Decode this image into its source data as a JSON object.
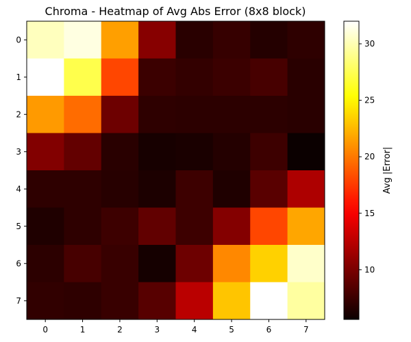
{
  "chart_data": {
    "type": "heatmap",
    "title": "Chroma - Heatmap of Avg Abs Error (8x8 block)",
    "xlabel": "",
    "ylabel": "",
    "x_ticks": [
      "0",
      "1",
      "2",
      "3",
      "4",
      "5",
      "6",
      "7"
    ],
    "y_ticks": [
      "0",
      "1",
      "2",
      "3",
      "4",
      "5",
      "6",
      "7"
    ],
    "colormap": "hot",
    "vmin": 5.6,
    "vmax": 32.0,
    "colorbar": {
      "label": "Avg |Error|",
      "ticks": [
        10,
        15,
        20,
        25,
        30
      ],
      "tick_labels": [
        "10",
        "15",
        "20",
        "25",
        "30"
      ]
    },
    "values": [
      [
        30.3,
        31.2,
        21.5,
        10.5,
        6.8,
        7.3,
        6.6,
        7.0
      ],
      [
        32.0,
        27.3,
        18.0,
        7.5,
        7.2,
        7.5,
        8.0,
        6.8
      ],
      [
        21.3,
        19.5,
        9.5,
        7.0,
        6.9,
        6.9,
        6.9,
        6.8
      ],
      [
        10.3,
        9.1,
        6.8,
        6.1,
        6.2,
        6.6,
        7.6,
        5.6
      ],
      [
        7.0,
        7.0,
        6.7,
        6.3,
        7.6,
        6.4,
        8.7,
        12.0
      ],
      [
        6.4,
        7.0,
        7.6,
        9.0,
        7.6,
        10.4,
        18.0,
        21.8
      ],
      [
        6.9,
        8.0,
        7.4,
        6.0,
        9.5,
        20.6,
        23.5,
        30.6
      ],
      [
        7.1,
        7.0,
        7.4,
        8.6,
        12.5,
        23.0,
        32.0,
        29.5
      ]
    ]
  }
}
